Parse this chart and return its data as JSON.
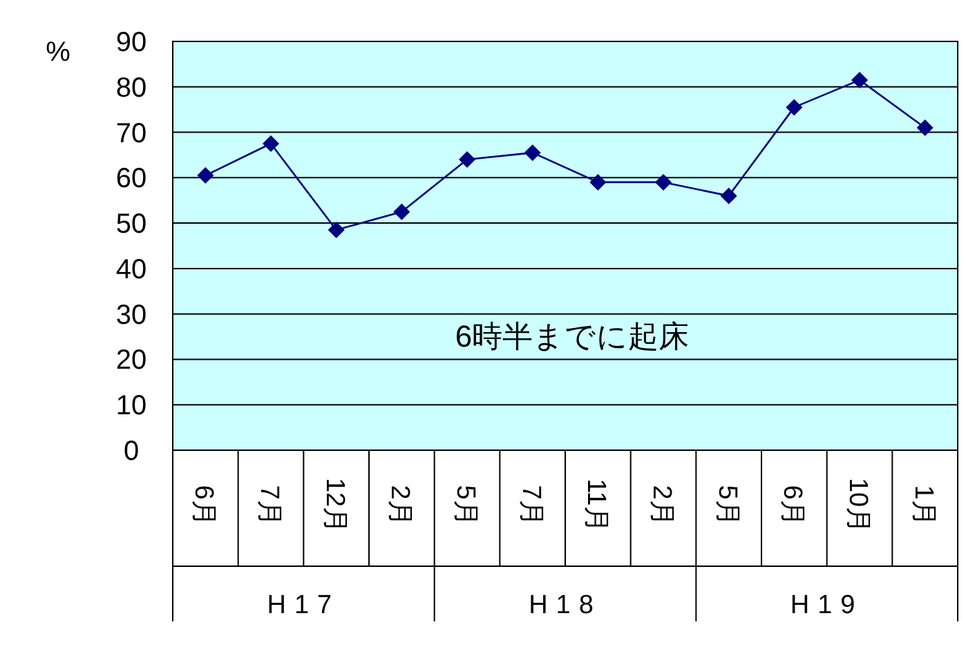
{
  "chart_data": {
    "type": "line",
    "title": "6時半までに起床",
    "ylabel": "%",
    "categories": [
      "6月",
      "7月",
      "12月",
      "2月",
      "5月",
      "7月",
      "11月",
      "2月",
      "5月",
      "6月",
      "10月",
      "1月"
    ],
    "series": [
      {
        "color": "#000080",
        "values": [
          60.5,
          67.5,
          48.5,
          52.5,
          64,
          65.5,
          59,
          59,
          56,
          75.5,
          81.5,
          71
        ]
      }
    ],
    "annotations": [
      "H17",
      "H18",
      "H19"
    ],
    "ylim": [
      0,
      90
    ],
    "yticks": [
      0,
      10,
      20,
      30,
      40,
      50,
      60,
      70,
      80,
      90
    ],
    "grid": "y",
    "marker": "diamond"
  }
}
